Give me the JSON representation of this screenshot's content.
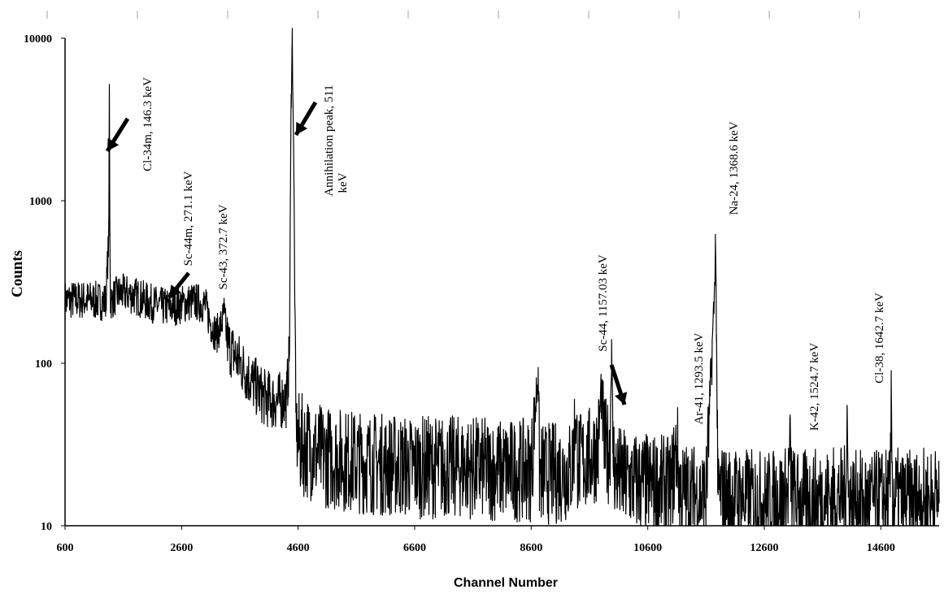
{
  "chart_data": {
    "type": "line",
    "xlabel": "Channel Number",
    "ylabel": "Counts",
    "xlim": [
      600,
      15600
    ],
    "ylim": [
      10,
      10000
    ],
    "yscale": "log",
    "x_ticks": [
      600,
      2600,
      4600,
      6600,
      8600,
      10600,
      12600,
      14600
    ],
    "y_ticks": [
      10,
      100,
      1000,
      10000
    ],
    "grid": false,
    "legend": "none",
    "line_color": "#000000",
    "series": [
      {
        "x": [
          600,
          1000,
          1300,
          1350,
          1360,
          1370,
          1380,
          1400,
          1500,
          1600,
          1800,
          2000,
          2200,
          2400,
          2600,
          2800,
          3000,
          3100,
          3200,
          3300,
          3330,
          3360,
          3400,
          3600,
          3800,
          4000,
          4200,
          4400,
          4450,
          4480,
          4500,
          4520,
          4560,
          4600,
          4800,
          5000,
          5500,
          6000,
          6600,
          7000,
          7500,
          8000,
          8600,
          8720,
          8740,
          8760,
          8800,
          9000,
          9300,
          9360,
          9400,
          9600,
          9750,
          9800,
          9850,
          9950,
          9980,
          10000,
          10050,
          10200,
          10600,
          11000,
          11100,
          11150,
          11200,
          11600,
          11750,
          11760,
          11780,
          11800,
          12000,
          12600,
          13000,
          13040,
          13080,
          13200,
          13800,
          14000,
          14020,
          14040,
          14100,
          14500,
          14760,
          14780,
          14800,
          15000,
          15600
        ],
        "y": [
          245,
          245,
          240,
          600,
          5200,
          600,
          240,
          245,
          265,
          270,
          260,
          240,
          225,
          220,
          230,
          240,
          230,
          175,
          150,
          180,
          205,
          160,
          130,
          100,
          78,
          62,
          58,
          60,
          110,
          4500,
          10000,
          2500,
          50,
          32,
          30,
          27,
          25,
          24,
          23,
          23,
          23,
          22,
          22,
          94,
          22,
          21,
          21,
          21,
          22,
          45,
          24,
          26,
          30,
          70,
          30,
          28,
          140,
          28,
          21,
          19,
          18,
          17,
          31,
          17,
          16,
          15,
          300,
          620,
          150,
          16,
          15,
          14,
          15,
          28,
          15,
          14,
          15,
          15,
          55,
          15,
          14,
          14,
          15,
          70,
          15,
          14,
          15
        ]
      }
    ],
    "annotations": [
      {
        "text": "Cl-34m, 146.3 keV"
      },
      {
        "text": "Sc-44m, 271.1 keV"
      },
      {
        "text": "Sc-43, 372.7 keV"
      },
      {
        "text": "Annihilation peak, 511"
      },
      {
        "text": "keV"
      },
      {
        "text": "Sc-44, 1157.03 keV"
      },
      {
        "text": "Ar-41, 1293.5 keV"
      },
      {
        "text": "Na-24, 1368.6 keV"
      },
      {
        "text": "K-42, 1524.7 keV"
      },
      {
        "text": "Cl-38, 1642.7 keV"
      }
    ]
  }
}
